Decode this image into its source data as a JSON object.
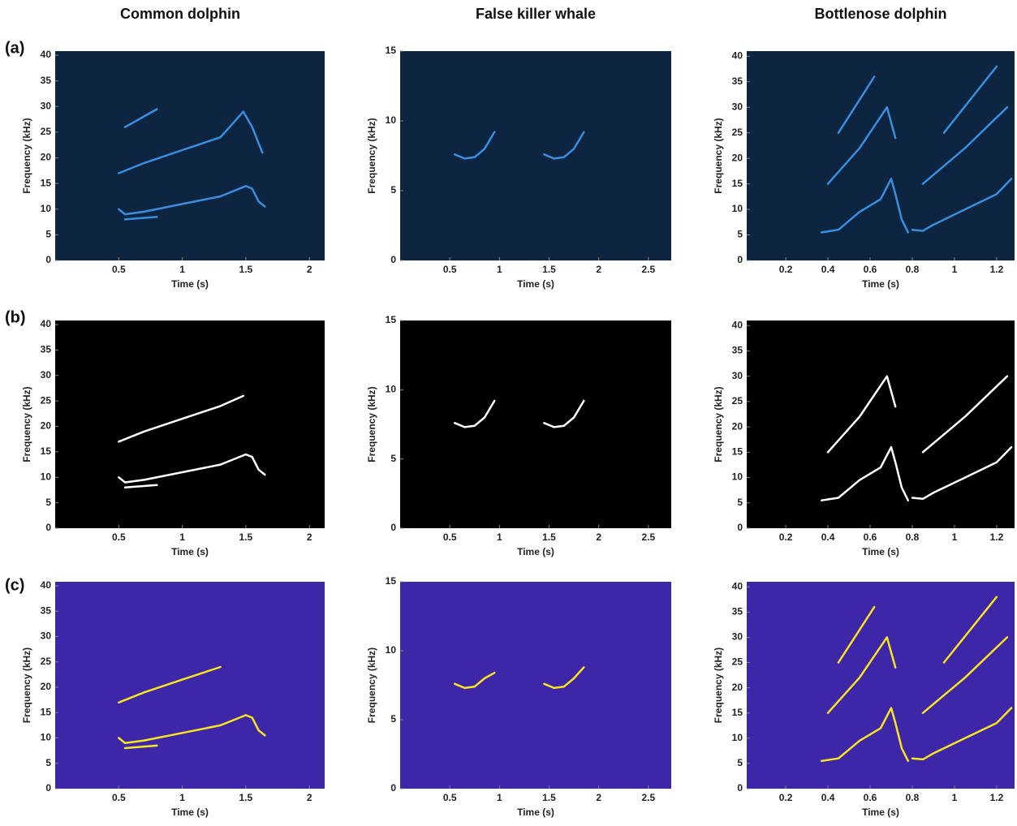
{
  "column_titles": [
    "Common dolphin",
    "False killer whale",
    "Bottlenose dolphin"
  ],
  "row_labels": [
    "(a)",
    "(b)",
    "(c)"
  ],
  "chart_data": [
    {
      "type": "spectrogram",
      "xlabel": "Time (s)",
      "ylabel": "Frequency (kHz)",
      "xlim": [
        0,
        2.12
      ],
      "ylim": [
        0,
        40.8
      ],
      "xticks": [
        0.5,
        1,
        1.5,
        2
      ],
      "yticks": [
        0,
        5,
        10,
        15,
        20,
        25,
        30,
        35,
        40
      ],
      "background": "#0d2540",
      "color": "#3a8ee0",
      "contours": [
        {
          "x": [
            0.5,
            0.55,
            0.7,
            1,
            1.3,
            1.5,
            1.55,
            1.6,
            1.65
          ],
          "y": [
            10,
            9,
            9.5,
            11,
            12.5,
            14.5,
            14,
            11.5,
            10.5
          ]
        },
        {
          "x": [
            0.5,
            0.7,
            1,
            1.3,
            1.48,
            1.55,
            1.63
          ],
          "y": [
            17,
            19,
            21.5,
            24,
            29,
            26,
            21
          ]
        },
        {
          "x": [
            0.55,
            0.8
          ],
          "y": [
            8,
            8.5
          ]
        },
        {
          "x": [
            0.55,
            0.8
          ],
          "y": [
            26,
            29.5
          ]
        }
      ]
    },
    {
      "type": "spectrogram",
      "xlabel": "Time (s)",
      "ylabel": "Frequency (kHz)",
      "xlim": [
        0,
        2.73
      ],
      "ylim": [
        0,
        15
      ],
      "xticks": [
        0.5,
        1,
        1.5,
        2,
        2.5
      ],
      "yticks": [
        0,
        5,
        10,
        15
      ],
      "background": "#0d2540",
      "color": "#3a8ee0",
      "contours": [
        {
          "x": [
            0.55,
            0.65,
            0.75,
            0.85,
            0.95
          ],
          "y": [
            7.6,
            7.3,
            7.4,
            8,
            9.2
          ]
        },
        {
          "x": [
            1.45,
            1.55,
            1.65,
            1.75,
            1.85
          ],
          "y": [
            7.6,
            7.3,
            7.4,
            8,
            9.2
          ]
        }
      ]
    },
    {
      "type": "spectrogram",
      "xlabel": "Time (s)",
      "ylabel": "Frequency (kHz)",
      "xlim": [
        0.015,
        1.285
      ],
      "ylim": [
        0,
        41
      ],
      "xticks": [
        0.2,
        0.4,
        0.6,
        0.8,
        1,
        1.2
      ],
      "yticks": [
        0,
        5,
        10,
        15,
        20,
        25,
        30,
        35,
        40
      ],
      "background": "#0d2540",
      "color": "#3a8ee0",
      "contours": [
        {
          "x": [
            0.37,
            0.45,
            0.55,
            0.65,
            0.7,
            0.72,
            0.75,
            0.78
          ],
          "y": [
            5.5,
            6,
            9.5,
            12,
            16,
            13,
            8,
            5.5
          ]
        },
        {
          "x": [
            0.8,
            0.85,
            0.9,
            1.05,
            1.2,
            1.27
          ],
          "y": [
            6,
            5.8,
            7,
            10,
            13,
            16
          ]
        },
        {
          "x": [
            0.4,
            0.55,
            0.68,
            0.72
          ],
          "y": [
            15,
            22,
            30,
            24
          ]
        },
        {
          "x": [
            0.85,
            1.05,
            1.25
          ],
          "y": [
            15,
            22,
            30
          ]
        },
        {
          "x": [
            0.45,
            0.62
          ],
          "y": [
            25,
            36
          ]
        },
        {
          "x": [
            0.95,
            1.2
          ],
          "y": [
            25,
            38
          ]
        }
      ]
    },
    {
      "type": "spectrogram",
      "xlabel": "Time (s)",
      "ylabel": "Frequency (kHz)",
      "xlim": [
        0,
        2.12
      ],
      "ylim": [
        0,
        40.8
      ],
      "xticks": [
        0.5,
        1,
        1.5,
        2
      ],
      "yticks": [
        0,
        5,
        10,
        15,
        20,
        25,
        30,
        35,
        40
      ],
      "background": "#000000",
      "color": "#ffffff",
      "contours": [
        {
          "x": [
            0.5,
            0.55,
            0.7,
            1,
            1.3,
            1.5,
            1.55,
            1.6,
            1.65
          ],
          "y": [
            10,
            9,
            9.5,
            11,
            12.5,
            14.5,
            14,
            11.5,
            10.5
          ]
        },
        {
          "x": [
            0.5,
            0.7,
            1,
            1.3,
            1.48
          ],
          "y": [
            17,
            19,
            21.5,
            24,
            26
          ]
        },
        {
          "x": [
            0.55,
            0.8
          ],
          "y": [
            8,
            8.5
          ]
        }
      ]
    },
    {
      "type": "spectrogram",
      "xlabel": "Time (s)",
      "ylabel": "Frequency (kHz)",
      "xlim": [
        0,
        2.73
      ],
      "ylim": [
        0,
        15
      ],
      "xticks": [
        0.5,
        1,
        1.5,
        2,
        2.5
      ],
      "yticks": [
        0,
        5,
        10,
        15
      ],
      "background": "#000000",
      "color": "#ffffff",
      "contours": [
        {
          "x": [
            0.55,
            0.65,
            0.75,
            0.85,
            0.95
          ],
          "y": [
            7.6,
            7.3,
            7.4,
            8,
            9.2
          ]
        },
        {
          "x": [
            1.45,
            1.55,
            1.65,
            1.75,
            1.85
          ],
          "y": [
            7.6,
            7.3,
            7.4,
            8,
            9.2
          ]
        }
      ]
    },
    {
      "type": "spectrogram",
      "xlabel": "Time (s)",
      "ylabel": "Frequency (kHz)",
      "xlim": [
        0.015,
        1.285
      ],
      "ylim": [
        0,
        41
      ],
      "xticks": [
        0.2,
        0.4,
        0.6,
        0.8,
        1,
        1.2
      ],
      "yticks": [
        0,
        5,
        10,
        15,
        20,
        25,
        30,
        35,
        40
      ],
      "background": "#000000",
      "color": "#ffffff",
      "contours": [
        {
          "x": [
            0.37,
            0.45,
            0.55,
            0.65,
            0.7,
            0.72,
            0.75,
            0.78
          ],
          "y": [
            5.5,
            6,
            9.5,
            12,
            16,
            13,
            8,
            5.5
          ]
        },
        {
          "x": [
            0.8,
            0.85,
            0.9,
            1.05,
            1.2,
            1.27
          ],
          "y": [
            6,
            5.8,
            7,
            10,
            13,
            16
          ]
        },
        {
          "x": [
            0.4,
            0.55,
            0.68,
            0.72
          ],
          "y": [
            15,
            22,
            30,
            24
          ]
        },
        {
          "x": [
            0.85,
            1.05,
            1.25
          ],
          "y": [
            15,
            22,
            30
          ]
        }
      ]
    },
    {
      "type": "spectrogram",
      "xlabel": "Time (s)",
      "ylabel": "Frequency (kHz)",
      "xlim": [
        0,
        2.12
      ],
      "ylim": [
        0,
        40.8
      ],
      "xticks": [
        0.5,
        1,
        1.5,
        2
      ],
      "yticks": [
        0,
        5,
        10,
        15,
        20,
        25,
        30,
        35,
        40
      ],
      "background": "#3d26a8",
      "color": "#f9e61e",
      "contours": [
        {
          "x": [
            0.5,
            0.55,
            0.7,
            1,
            1.3,
            1.5,
            1.55,
            1.6,
            1.65
          ],
          "y": [
            10,
            9,
            9.5,
            11,
            12.5,
            14.5,
            14,
            11.5,
            10.5
          ]
        },
        {
          "x": [
            0.5,
            0.7,
            1,
            1.3
          ],
          "y": [
            17,
            19,
            21.5,
            24
          ]
        },
        {
          "x": [
            0.55,
            0.8
          ],
          "y": [
            8,
            8.5
          ]
        }
      ]
    },
    {
      "type": "spectrogram",
      "xlabel": "Time (s)",
      "ylabel": "Frequency (kHz)",
      "xlim": [
        0,
        2.73
      ],
      "ylim": [
        0,
        15
      ],
      "xticks": [
        0.5,
        1,
        1.5,
        2,
        2.5
      ],
      "yticks": [
        0,
        5,
        10,
        15
      ],
      "background": "#3d26a8",
      "color": "#f9e61e",
      "contours": [
        {
          "x": [
            0.55,
            0.65,
            0.75,
            0.85,
            0.95
          ],
          "y": [
            7.6,
            7.3,
            7.4,
            8,
            8.4
          ]
        },
        {
          "x": [
            1.45,
            1.55,
            1.65,
            1.75,
            1.85
          ],
          "y": [
            7.6,
            7.3,
            7.4,
            8,
            8.8
          ]
        }
      ]
    },
    {
      "type": "spectrogram",
      "xlabel": "Time (s)",
      "ylabel": "Frequency (kHz)",
      "xlim": [
        0.015,
        1.285
      ],
      "ylim": [
        0,
        41
      ],
      "xticks": [
        0.2,
        0.4,
        0.6,
        0.8,
        1,
        1.2
      ],
      "yticks": [
        0,
        5,
        10,
        15,
        20,
        25,
        30,
        35,
        40
      ],
      "background": "#3d26a8",
      "color": "#f9e61e",
      "contours": [
        {
          "x": [
            0.37,
            0.45,
            0.55,
            0.65,
            0.7,
            0.72,
            0.75,
            0.78
          ],
          "y": [
            5.5,
            6,
            9.5,
            12,
            16,
            13,
            8,
            5.5
          ]
        },
        {
          "x": [
            0.8,
            0.85,
            0.9,
            1.05,
            1.2,
            1.27
          ],
          "y": [
            6,
            5.8,
            7,
            10,
            13,
            16
          ]
        },
        {
          "x": [
            0.4,
            0.55,
            0.68,
            0.72
          ],
          "y": [
            15,
            22,
            30,
            24
          ]
        },
        {
          "x": [
            0.85,
            1.05,
            1.25
          ],
          "y": [
            15,
            22,
            30
          ]
        },
        {
          "x": [
            0.45,
            0.62
          ],
          "y": [
            25,
            36
          ]
        },
        {
          "x": [
            0.95,
            1.2
          ],
          "y": [
            25,
            38
          ]
        }
      ]
    }
  ]
}
